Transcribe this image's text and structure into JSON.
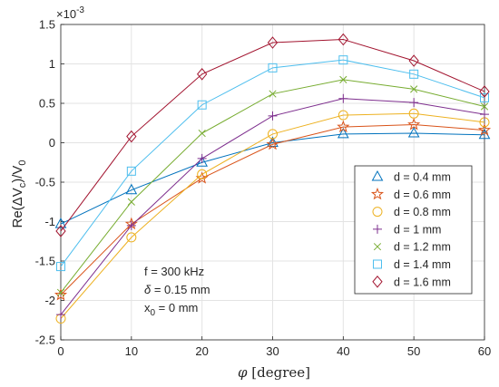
{
  "chart_data": {
    "type": "line",
    "xlabel_symbol": "φ",
    "xlabel_unit": "[degree]",
    "ylabel_parts": [
      "Re(",
      "Δ",
      "V",
      "c",
      ")/V",
      "0"
    ],
    "y_exponent": "×10",
    "y_exponent_power": "-3",
    "x": [
      0,
      10,
      20,
      30,
      40,
      50,
      60
    ],
    "xlim": [
      0,
      60
    ],
    "ylim": [
      -2.5,
      1.5
    ],
    "xticks": [
      0,
      10,
      20,
      30,
      40,
      50,
      60
    ],
    "yticks": [
      -2.5,
      -2,
      -1.5,
      -1,
      -0.5,
      0,
      0.5,
      1,
      1.5
    ],
    "ytick_labels": [
      "-2.5",
      "-2",
      "-1.5",
      "-1",
      "-0.5",
      "0",
      "0.5",
      "1",
      "1.5"
    ],
    "grid": true,
    "legend_position": "right-middle",
    "annotation": {
      "line1": "f = 300 kHz",
      "line2_symbol": "δ",
      "line2_rest": " = 0.15 mm",
      "line3_prefix": "x",
      "line3_sub": "0",
      "line3_rest": " = 0 mm"
    },
    "series": [
      {
        "name": "d = 0.4 mm",
        "color": "#0072BD",
        "marker": "triangle",
        "values": [
          -1.03,
          -0.6,
          -0.25,
          0.0,
          0.11,
          0.12,
          0.1
        ]
      },
      {
        "name": "d = 0.6 mm",
        "color": "#D95319",
        "marker": "star",
        "values": [
          -1.93,
          -1.03,
          -0.45,
          -0.02,
          0.2,
          0.23,
          0.16
        ]
      },
      {
        "name": "d = 0.8 mm",
        "color": "#EDB120",
        "marker": "circle",
        "values": [
          -2.23,
          -1.2,
          -0.4,
          0.11,
          0.35,
          0.37,
          0.26
        ]
      },
      {
        "name": "d = 1 mm",
        "color": "#7E2F8E",
        "marker": "plus",
        "values": [
          -2.18,
          -1.05,
          -0.2,
          0.34,
          0.56,
          0.51,
          0.36
        ]
      },
      {
        "name": "d = 1.2 mm",
        "color": "#77AC30",
        "marker": "x",
        "values": [
          -1.9,
          -0.75,
          0.12,
          0.62,
          0.8,
          0.68,
          0.46
        ]
      },
      {
        "name": "d = 1.4 mm",
        "color": "#4DBEEE",
        "marker": "square",
        "values": [
          -1.57,
          -0.36,
          0.48,
          0.95,
          1.05,
          0.87,
          0.57
        ]
      },
      {
        "name": "d = 1.6 mm",
        "color": "#A2142F",
        "marker": "diamond",
        "values": [
          -1.12,
          0.08,
          0.87,
          1.27,
          1.31,
          1.04,
          0.65
        ]
      }
    ]
  }
}
